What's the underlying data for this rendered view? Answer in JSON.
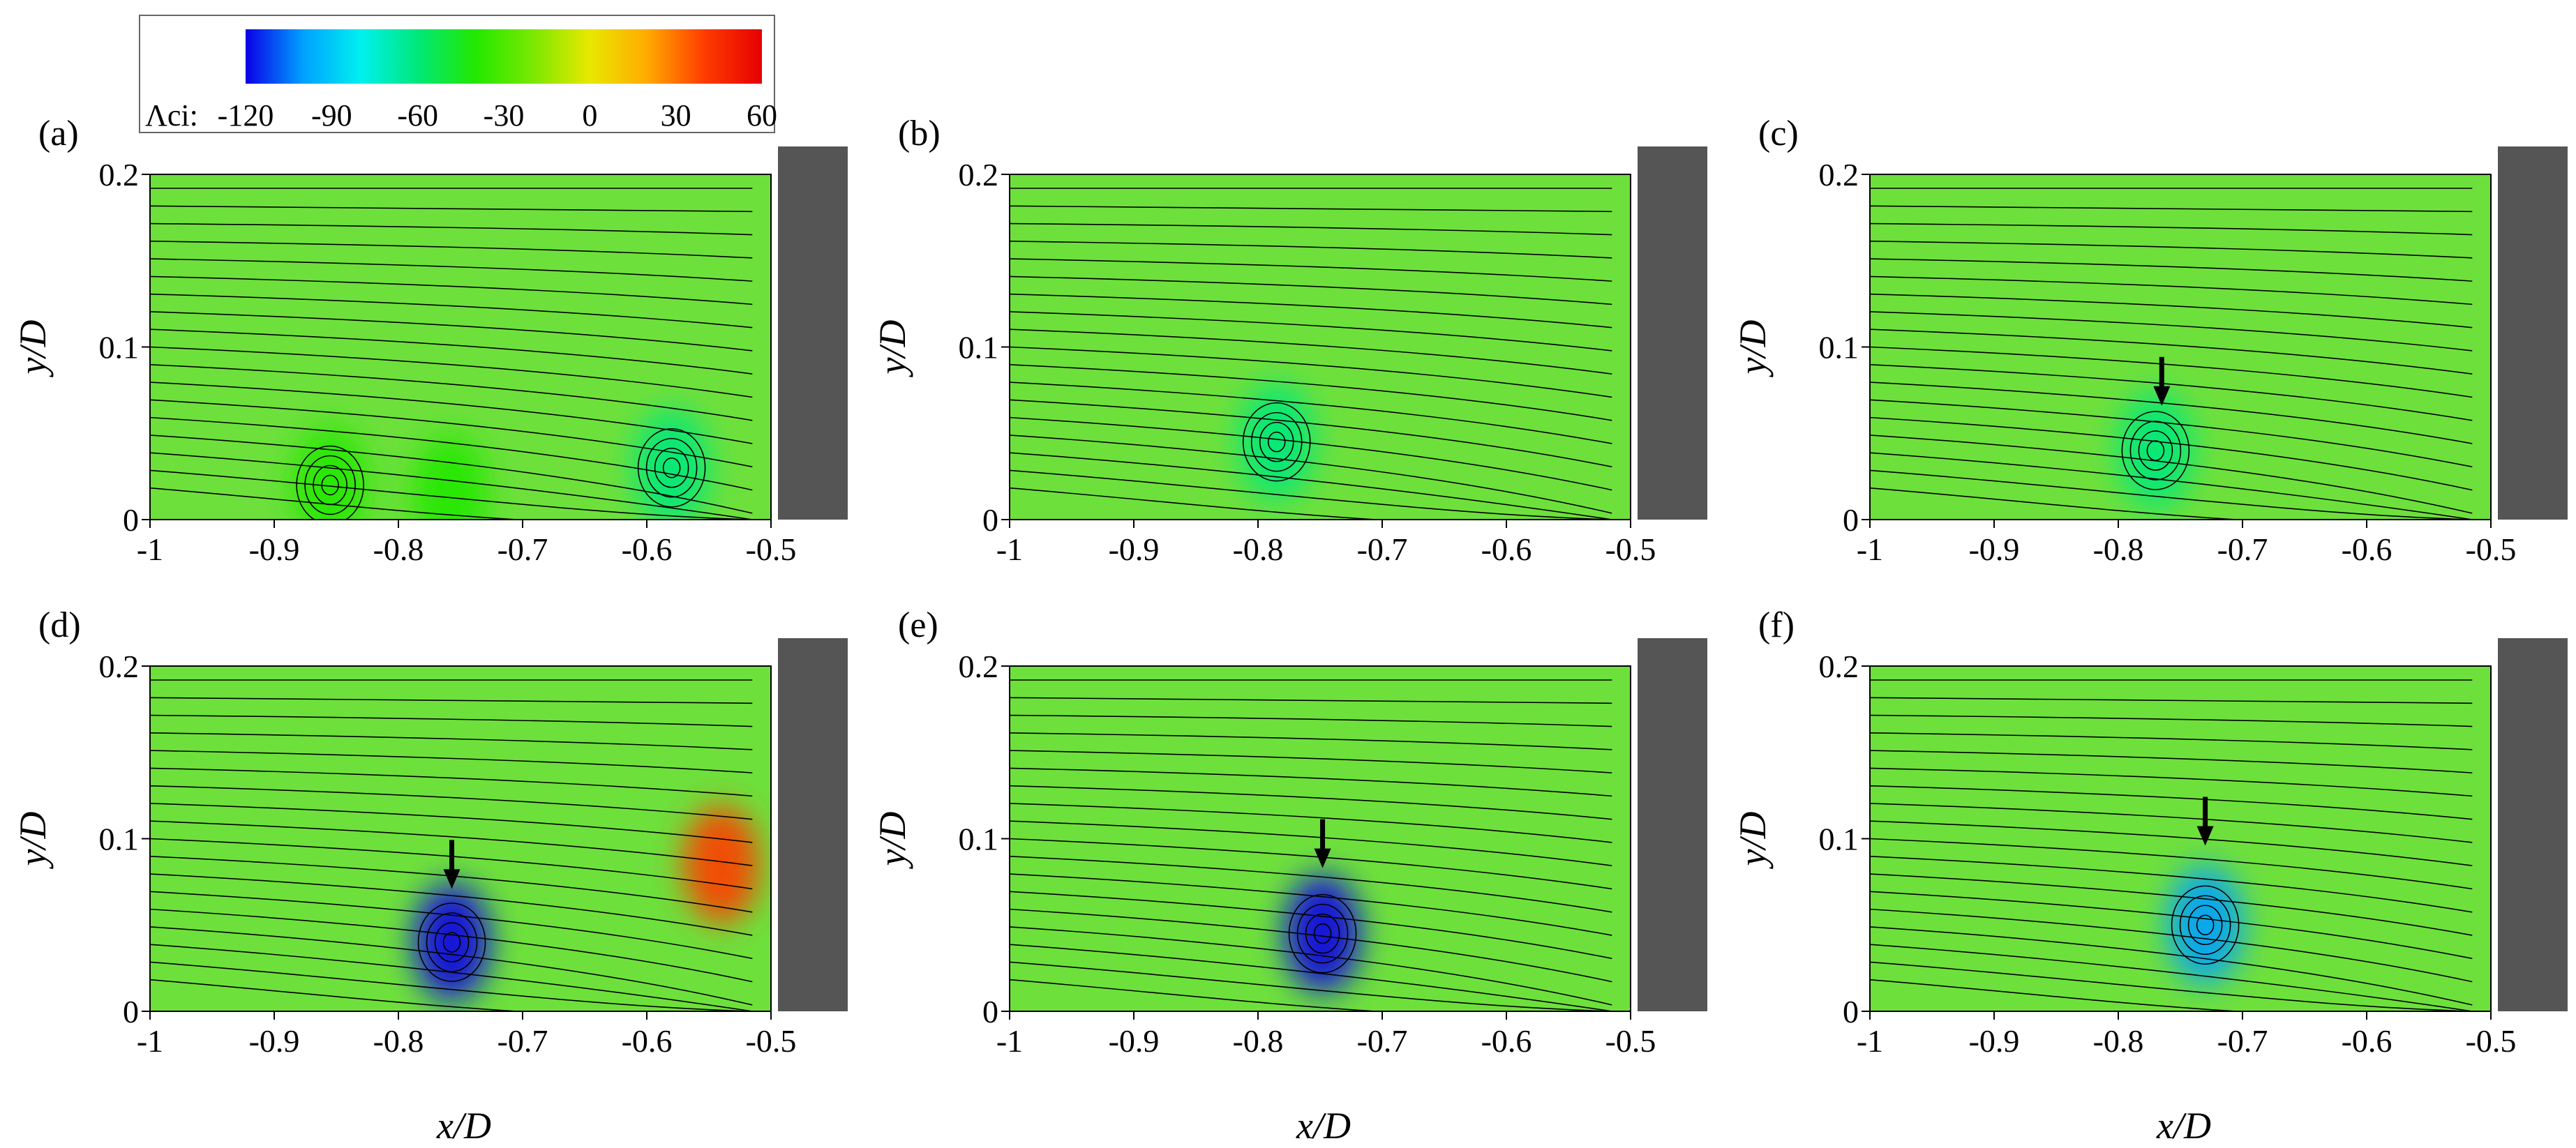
{
  "chart_data": {
    "type": "heatmap",
    "colorbar": {
      "label": "Λci:",
      "ticks": [
        "-120",
        "-90",
        "-60",
        "-30",
        "0",
        "30",
        "60"
      ],
      "range": [
        -120,
        60
      ],
      "colors": [
        "#0a00e6",
        "#00a0ff",
        "#00f0f0",
        "#00e87a",
        "#22e800",
        "#7ae800",
        "#e8e800",
        "#ffaa00",
        "#ff3c00",
        "#e60000"
      ]
    },
    "xlabel": "x/D",
    "ylabel": "y/D",
    "xlim": [
      -1,
      -0.5
    ],
    "ylim": [
      0,
      0.2
    ],
    "x_ticks": [
      "-1",
      "-0.9",
      "-0.8",
      "-0.7",
      "-0.6",
      "-0.5"
    ],
    "y_ticks": [
      "0",
      "0.1",
      "0.2"
    ],
    "field_background_color": "#6ee03c",
    "wall_color": "#555555",
    "panels": [
      {
        "label": "(a)",
        "vortices": [
          {
            "x": -0.855,
            "y": 0.02,
            "strength": -45
          },
          {
            "x": -0.758,
            "y": 0.015,
            "strength": -40
          },
          {
            "x": -0.58,
            "y": 0.03,
            "strength": -60
          }
        ],
        "arrow": null
      },
      {
        "label": "(b)",
        "vortices": [
          {
            "x": -0.785,
            "y": 0.045,
            "strength": -60
          }
        ],
        "arrow": null
      },
      {
        "label": "(c)",
        "vortices": [
          {
            "x": -0.77,
            "y": 0.04,
            "strength": -70
          }
        ],
        "arrow": {
          "x": -0.765,
          "y": 0.07
        }
      },
      {
        "label": "(d)",
        "vortices": [
          {
            "x": -0.757,
            "y": 0.04,
            "strength": -120
          },
          {
            "x": -0.54,
            "y": 0.085,
            "strength": 40
          }
        ],
        "arrow": {
          "x": -0.757,
          "y": 0.075
        }
      },
      {
        "label": "(e)",
        "vortices": [
          {
            "x": -0.748,
            "y": 0.045,
            "strength": -115
          }
        ],
        "arrow": {
          "x": -0.748,
          "y": 0.087
        }
      },
      {
        "label": "(f)",
        "vortices": [
          {
            "x": -0.73,
            "y": 0.05,
            "strength": -100
          }
        ],
        "arrow": {
          "x": -0.73,
          "y": 0.1
        }
      }
    ]
  }
}
